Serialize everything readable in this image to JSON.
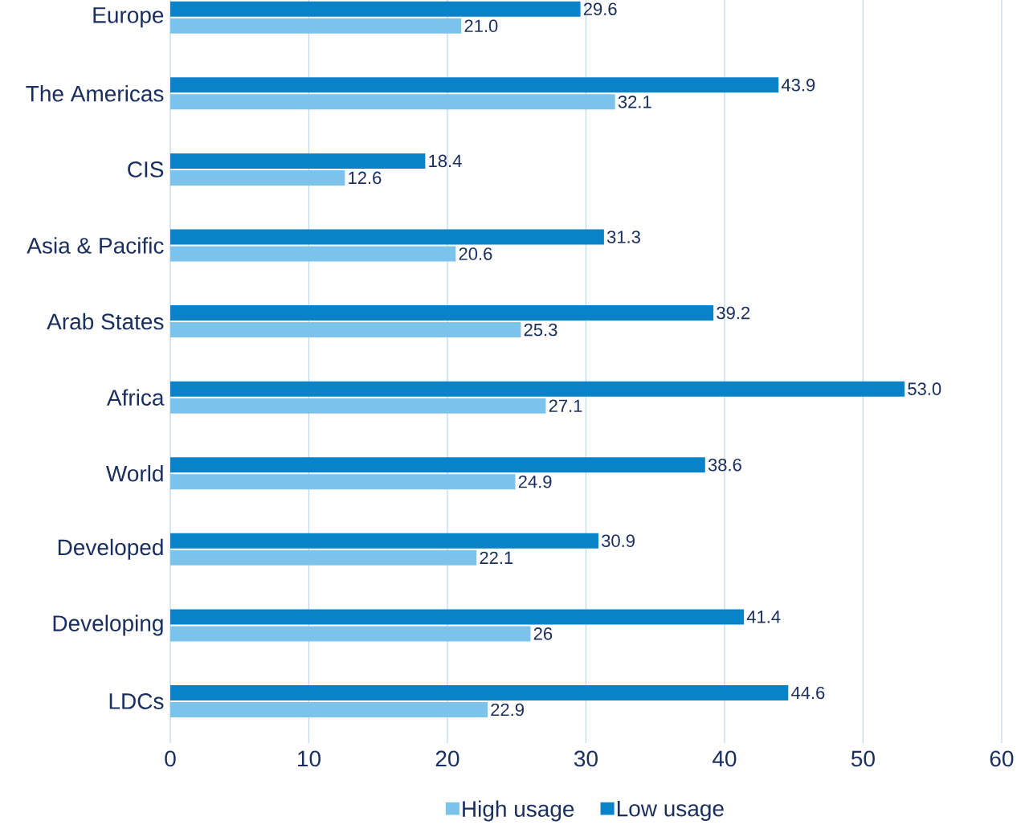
{
  "chart_data": {
    "type": "bar",
    "orientation": "horizontal",
    "categories": [
      "Europe",
      "The Americas",
      "CIS",
      "Asia & Pacific",
      "Arab States",
      "Africa",
      "World",
      "Developed",
      "Developing",
      "LDCs"
    ],
    "series": [
      {
        "name": "High usage",
        "color": "#7cc3ec",
        "values": [
          21.0,
          32.1,
          12.6,
          20.6,
          25.3,
          27.1,
          24.9,
          22.1,
          26,
          22.9
        ],
        "value_labels": [
          "21.0",
          "32.1",
          "12.6",
          "20.6",
          "25.3",
          "27.1",
          "24.9",
          "22.1",
          "26",
          "22.9"
        ]
      },
      {
        "name": "Low usage",
        "color": "#0a82c8",
        "values": [
          29.6,
          43.9,
          18.4,
          31.3,
          39.2,
          53.0,
          38.6,
          30.9,
          41.4,
          44.6
        ],
        "value_labels": [
          "29.6",
          "43.9",
          "18.4",
          "31.3",
          "39.2",
          "53.0",
          "38.6",
          "30.9",
          "41.4",
          "44.6"
        ]
      }
    ],
    "xlim": [
      0,
      60
    ],
    "xticks": [
      0,
      10,
      20,
      30,
      40,
      50,
      60
    ],
    "grid": "x",
    "legend": "bottom"
  }
}
